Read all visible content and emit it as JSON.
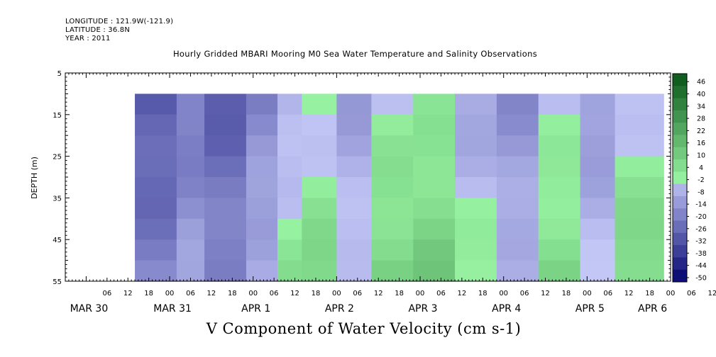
{
  "header": {
    "longitude": "LONGITUDE : 121.9W(-121.9)",
    "latitude": "LATITUDE : 36.8N",
    "year": "YEAR : 2011"
  },
  "chart_data": {
    "type": "heatmap",
    "title": "Hourly Gridded MBARI Mooring M0 Sea Water Temperature and Salinity Observations",
    "caption": "V Component of Water Velocity (cm s-1)",
    "ylabel": "DEPTH (m)",
    "y_inverted": true,
    "ylim": [
      5,
      55
    ],
    "y_ticks": [
      5,
      15,
      25,
      35,
      45,
      55
    ],
    "y_data_range": [
      10,
      55
    ],
    "x_hours_range": [
      -6,
      168
    ],
    "data_start_hour": 14,
    "data_end_hour": 166,
    "x_tick_labels": [
      "06",
      "12",
      "18",
      "00",
      "06",
      "12",
      "18",
      "00",
      "06",
      "12",
      "18",
      "00",
      "06",
      "12",
      "18",
      "00",
      "06",
      "12",
      "18",
      "00",
      "06",
      "12",
      "18",
      "00",
      "06",
      "12",
      "18",
      "00",
      "06",
      "12",
      "18",
      "00",
      "06"
    ],
    "date_labels": [
      {
        "label": "MAR 30",
        "hour": 0
      },
      {
        "label": "MAR 31",
        "hour": 24
      },
      {
        "label": "APR  1",
        "hour": 48
      },
      {
        "label": "APR  2",
        "hour": 72
      },
      {
        "label": "APR  3",
        "hour": 96
      },
      {
        "label": "APR  4",
        "hour": 120
      },
      {
        "label": "APR  5",
        "hour": 144
      },
      {
        "label": "APR  6",
        "hour": 162
      }
    ],
    "colorbar": {
      "min": -50,
      "max": 50,
      "step": 6,
      "labels": [
        "46",
        "40",
        "34",
        "28",
        "22",
        "16",
        "10",
        "4",
        "-2",
        "-8",
        "-14",
        "-20",
        "-26",
        "-32",
        "-38",
        "-44",
        "-50"
      ]
    },
    "pattern": [
      {
        "start_hour": 14,
        "end_hour": 26,
        "v": -24
      },
      {
        "start_hour": 26,
        "end_hour": 34,
        "v": -16
      },
      {
        "start_hour": 34,
        "end_hour": 46,
        "v": -22
      },
      {
        "start_hour": 46,
        "end_hour": 55,
        "v": -12
      },
      {
        "start_hour": 55,
        "end_hour": 62,
        "v": -2
      },
      {
        "start_hour": 62,
        "end_hour": 72,
        "v": 2
      },
      {
        "start_hour": 72,
        "end_hour": 82,
        "v": -6
      },
      {
        "start_hour": 82,
        "end_hour": 94,
        "v": 4
      },
      {
        "start_hour": 94,
        "end_hour": 106,
        "v": 6
      },
      {
        "start_hour": 106,
        "end_hour": 118,
        "v": -4
      },
      {
        "start_hour": 118,
        "end_hour": 130,
        "v": -10
      },
      {
        "start_hour": 130,
        "end_hour": 142,
        "v": 2
      },
      {
        "start_hour": 142,
        "end_hour": 152,
        "v": -8
      },
      {
        "start_hour": 152,
        "end_hour": 166,
        "v": 3
      }
    ],
    "colors": {
      "positive_dark": "#0d5a1c",
      "positive_light": "#97f2a1",
      "negative_light": "#c3c7f6",
      "negative_dark": "#02036e"
    }
  }
}
